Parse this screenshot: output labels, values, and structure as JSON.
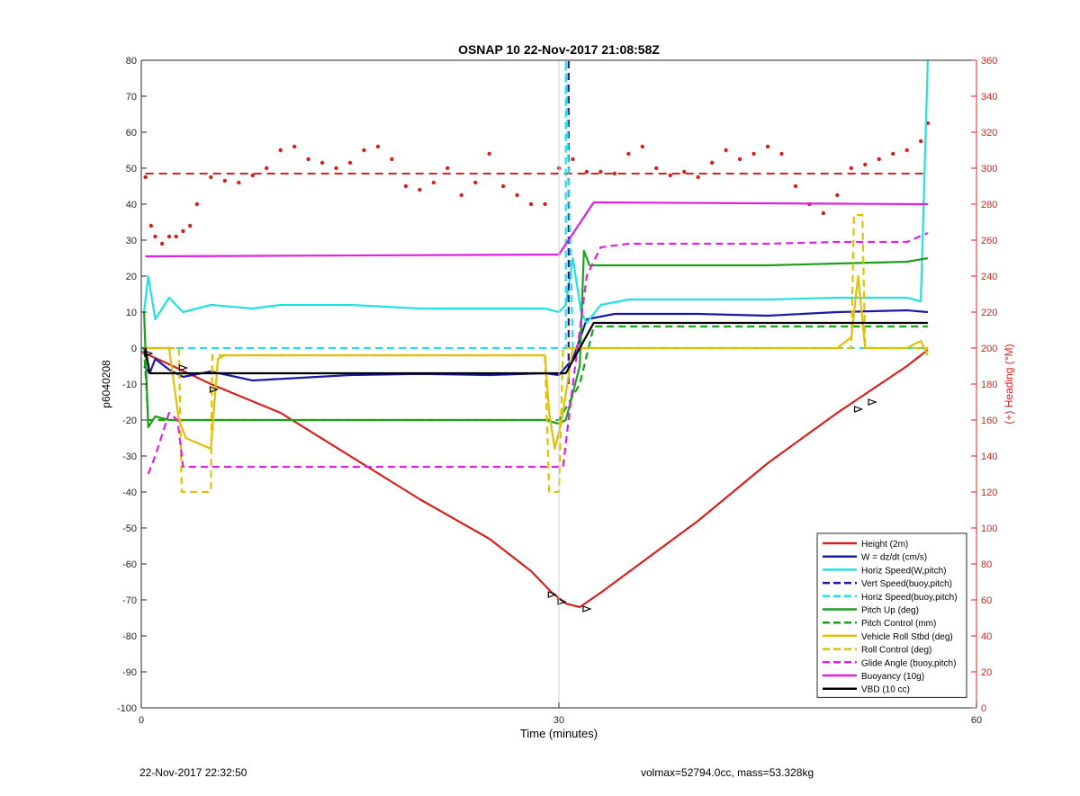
{
  "chart_data": {
    "type": "line",
    "title": "OSNAP 10 22-Nov-2017 21:08:58Z",
    "xlabel": "Time (minutes)",
    "ylabel_left": "p6040208",
    "ylabel_right": "(+) Heading (°M)",
    "xlim": [
      0,
      60
    ],
    "ylim_left": [
      -100,
      80
    ],
    "ylim_right": [
      0,
      360
    ],
    "x_ticks": [
      "0",
      "30",
      "60"
    ],
    "y_ticks_left": [
      "80",
      "70",
      "60",
      "50",
      "40",
      "30",
      "20",
      "10",
      "0",
      "-10",
      "-20",
      "-30",
      "-40",
      "-50",
      "-60",
      "-70",
      "-80",
      "-90",
      "-100"
    ],
    "y_ticks_right": [
      "360",
      "340",
      "320",
      "300",
      "280",
      "260",
      "240",
      "220",
      "200",
      "180",
      "160",
      "140",
      "120",
      "100",
      "80",
      "60",
      "40",
      "20",
      "0"
    ],
    "grid": "vertical line at x=30",
    "legend_position": "bottom-right",
    "series": [
      {
        "name": "Height (2m)",
        "color": "#d62020",
        "style": "solid",
        "x": [
          0,
          2,
          5,
          10,
          15,
          20,
          25,
          28,
          29.5,
          30.5,
          31.5,
          33,
          40,
          45,
          50,
          55,
          56.5
        ],
        "y": [
          -1,
          -4.5,
          -10,
          -18,
          -30,
          -42,
          -53,
          -62,
          -68,
          -71,
          -72,
          -68,
          -48,
          -32,
          -18,
          -5,
          -0.5
        ]
      },
      {
        "name": "W = dz/dt (cm/s)",
        "color": "#1a1aa8",
        "style": "solid",
        "x": [
          0.2,
          0.6,
          1,
          2,
          3,
          5,
          8,
          15,
          20,
          25,
          29,
          30,
          31,
          32,
          34,
          40,
          45,
          50,
          55,
          56.5
        ],
        "y": [
          -5,
          -7,
          -3,
          -6,
          -8,
          -6.5,
          -9,
          -7.5,
          -7.2,
          -7.5,
          -7,
          -7.5,
          -3,
          8,
          9.5,
          9.5,
          9,
          10,
          10.5,
          10
        ]
      },
      {
        "name": "Horiz Speed(W,pitch)",
        "color": "#22e0e0",
        "style": "solid",
        "x": [
          0.2,
          0.5,
          1,
          2,
          3,
          5,
          8,
          10,
          15,
          20,
          25,
          29,
          30,
          30.5,
          31,
          31.6,
          32,
          33,
          35,
          40,
          45,
          50,
          55,
          56,
          56.5
        ],
        "y": [
          10,
          20,
          8,
          14,
          10,
          12,
          11,
          12,
          12,
          11,
          11,
          11,
          10,
          12,
          25,
          10,
          7,
          12,
          13.5,
          13.5,
          13.5,
          14,
          14,
          13,
          80
        ]
      },
      {
        "name": "Vert Speed(buoy,pitch)",
        "color": "#1a1aa8",
        "style": "dashed",
        "x": [
          30.7,
          30.7
        ],
        "y": [
          -10,
          80
        ]
      },
      {
        "name": "Horiz Speed(buoy,pitch)",
        "color": "#22e0e0",
        "style": "dashed",
        "x": [
          0,
          30,
          30.5,
          30.5,
          31,
          35,
          56.5
        ],
        "y": [
          0,
          0,
          0,
          80,
          0,
          0,
          0
        ]
      },
      {
        "name": "Pitch Up (deg)",
        "color": "#1aa01a",
        "style": "solid",
        "x": [
          0.2,
          0.5,
          1,
          2,
          3,
          5,
          10,
          15,
          20,
          25,
          29,
          30,
          30.5,
          31.5,
          31.8,
          32.2,
          35,
          40,
          45,
          50,
          55,
          56.5
        ],
        "y": [
          10,
          -22,
          -19,
          -20,
          -20,
          -20,
          -20,
          -20,
          -20,
          -20,
          -20,
          -21,
          -20,
          -5,
          27,
          23,
          23,
          23,
          23,
          23.5,
          24,
          25
        ]
      },
      {
        "name": "Pitch Control (mm)",
        "color": "#1aa01a",
        "style": "dashed",
        "x": [
          0.2,
          0.5,
          1,
          30,
          31.5,
          32.5,
          56.5
        ],
        "y": [
          0,
          -20,
          -20,
          -20,
          -10,
          6,
          6
        ]
      },
      {
        "name": "Vehicle Roll Stbd (deg)",
        "color": "#e0c000",
        "style": "solid",
        "x": [
          0.2,
          2,
          2.7,
          3.2,
          5,
          5.5,
          6,
          10,
          15,
          20,
          25,
          29,
          29.3,
          29.7,
          30.2,
          31,
          32,
          35,
          40,
          45,
          50,
          51,
          51.5,
          52,
          55,
          56,
          56.5
        ],
        "y": [
          0,
          0,
          -20,
          -25,
          -28,
          -3,
          -2,
          -2,
          -2,
          -2,
          -2,
          -2,
          -18,
          -28,
          -20,
          0,
          0,
          0,
          0,
          0,
          0,
          3,
          20,
          0,
          0,
          2,
          -2
        ]
      },
      {
        "name": "Roll Control (deg)",
        "color": "#e0c000",
        "style": "dashed",
        "x": [
          0.2,
          2.7,
          2.9,
          5,
          5.1,
          29,
          29.3,
          30,
          30.3,
          51,
          51.2,
          51.8,
          52,
          56.5
        ],
        "y": [
          0,
          0,
          -40,
          -40,
          -2,
          -2,
          -40,
          -40,
          0,
          0,
          37,
          37,
          0,
          0
        ]
      },
      {
        "name": "Glide Angle (buoy,pitch)",
        "color": "#e020e0",
        "style": "dashed",
        "x": [
          0.5,
          1,
          2,
          2.6,
          3,
          5,
          10,
          15,
          20,
          25,
          29.5,
          30.3,
          31,
          32,
          33,
          35,
          40,
          45,
          50,
          55,
          56.5
        ],
        "y": [
          -35,
          -30,
          -18,
          -20,
          -33,
          -33,
          -33,
          -33,
          -33,
          -33,
          -33,
          -33,
          -10,
          20,
          28,
          29,
          29,
          29,
          29.5,
          29.5,
          32
        ]
      },
      {
        "name": "Buoyancy (10g)",
        "color": "#e020e0",
        "style": "solid",
        "x": [
          0.3,
          30,
          32.5,
          56.5
        ],
        "y": [
          25.5,
          26,
          40.5,
          40
        ]
      },
      {
        "name": "VBD (10 cc)",
        "color": "#000000",
        "style": "solid",
        "x": [
          0.3,
          0.6,
          30.5,
          32.5,
          56.5
        ],
        "y": [
          0,
          -7,
          -7,
          7,
          7
        ]
      }
    ],
    "heading_series": {
      "axis": "right",
      "color": "#d62020",
      "style": "dots",
      "x": [
        0.3,
        0.7,
        1,
        1.5,
        2,
        2.5,
        3,
        3.5,
        4,
        5,
        6,
        7,
        8,
        9,
        10,
        11,
        12,
        13,
        14,
        15,
        16,
        17,
        18,
        19,
        20,
        21,
        22,
        23,
        24,
        25,
        26,
        27,
        28,
        29,
        30,
        31,
        32,
        33,
        34,
        35,
        36,
        37,
        38,
        39,
        40,
        41,
        42,
        43,
        44,
        45,
        46,
        47,
        48,
        49,
        50,
        51,
        52,
        53,
        54,
        55,
        56,
        56.5
      ],
      "y": [
        295,
        268,
        262,
        258,
        262,
        262,
        265,
        268,
        280,
        295,
        293,
        292,
        296,
        300,
        310,
        312,
        305,
        303,
        300,
        303,
        310,
        312,
        305,
        290,
        288,
        292,
        300,
        285,
        292,
        308,
        290,
        285,
        280,
        280,
        300,
        305,
        298,
        298,
        297,
        308,
        312,
        300,
        296,
        298,
        295,
        303,
        310,
        305,
        308,
        312,
        308,
        290,
        280,
        275,
        285,
        300,
        302,
        305,
        308,
        310,
        315,
        325
      ]
    },
    "heading_mean": {
      "axis": "right",
      "color": "#d62020",
      "style": "dashed",
      "value": 297
    },
    "markers": {
      "color": "#d62020",
      "style": "triangles",
      "x": [
        0.5,
        3,
        5.2,
        29.5,
        30.2,
        32,
        51.5,
        52.5
      ],
      "y": [
        -1.5,
        -5.5,
        -11.5,
        -68.5,
        -70.5,
        -72.5,
        -17,
        -15
      ]
    }
  },
  "footer": {
    "timestamp": "22-Nov-2017 22:32:50",
    "stats": "volmax=52794.0cc, mass=53.328kg"
  }
}
